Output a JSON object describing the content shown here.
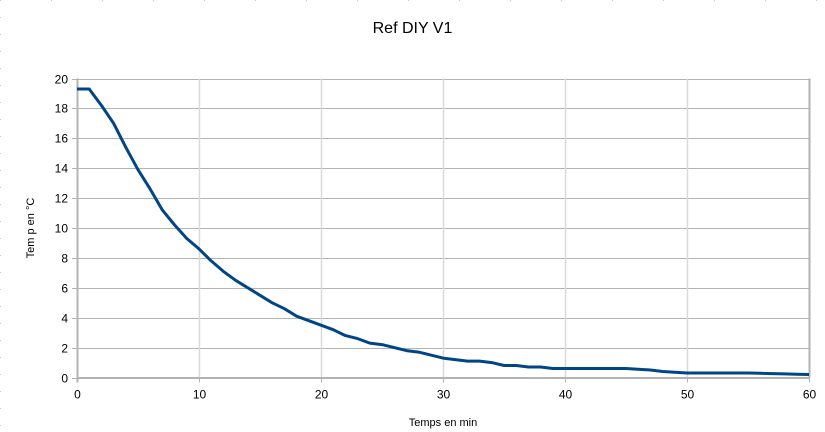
{
  "chart_data": {
    "type": "line",
    "title": "Ref DIY V1",
    "xlabel": "Temps en min",
    "ylabel": "Tem p en °C",
    "xlim": [
      0,
      60
    ],
    "ylim": [
      0,
      20
    ],
    "x_ticks": [
      0,
      10,
      20,
      30,
      40,
      50,
      60
    ],
    "y_ticks": [
      0,
      2,
      4,
      6,
      8,
      10,
      12,
      14,
      16,
      18,
      20
    ],
    "grid": true,
    "legend": null,
    "series": [
      {
        "name": "Ref DIY V1",
        "color": "#004586",
        "x": [
          0,
          1,
          2,
          3,
          4,
          5,
          6,
          7,
          8,
          9,
          10,
          11,
          12,
          13,
          14,
          15,
          16,
          17,
          18,
          19,
          20,
          21,
          22,
          23,
          24,
          25,
          26,
          27,
          28,
          29,
          30,
          31,
          32,
          33,
          34,
          35,
          36,
          37,
          38,
          39,
          40,
          41,
          42,
          43,
          44,
          45,
          46,
          47,
          48,
          49,
          50,
          51,
          52,
          53,
          54,
          55,
          56,
          57,
          58,
          59,
          60
        ],
        "values": [
          19.3,
          19.3,
          18.2,
          17.0,
          15.4,
          13.9,
          12.6,
          11.2,
          10.2,
          9.3,
          8.6,
          7.8,
          7.1,
          6.5,
          6.0,
          5.5,
          5.0,
          4.6,
          4.1,
          3.8,
          3.5,
          3.2,
          2.8,
          2.6,
          2.3,
          2.2,
          2.0,
          1.8,
          1.7,
          1.5,
          1.3,
          1.2,
          1.1,
          1.1,
          1.0,
          0.8,
          0.8,
          0.7,
          0.7,
          0.6,
          0.6,
          0.6,
          0.6,
          0.6,
          0.6,
          0.6,
          0.55,
          0.5,
          0.4,
          0.35,
          0.3,
          0.3,
          0.3,
          0.3,
          0.3,
          0.3,
          0.28,
          0.26,
          0.24,
          0.22,
          0.2
        ]
      }
    ]
  },
  "colors": {
    "line": "#004586",
    "gridline_h": "#b3b3b3",
    "gridline_v": "#d9d9d9",
    "axis": "#b3b3b3"
  }
}
